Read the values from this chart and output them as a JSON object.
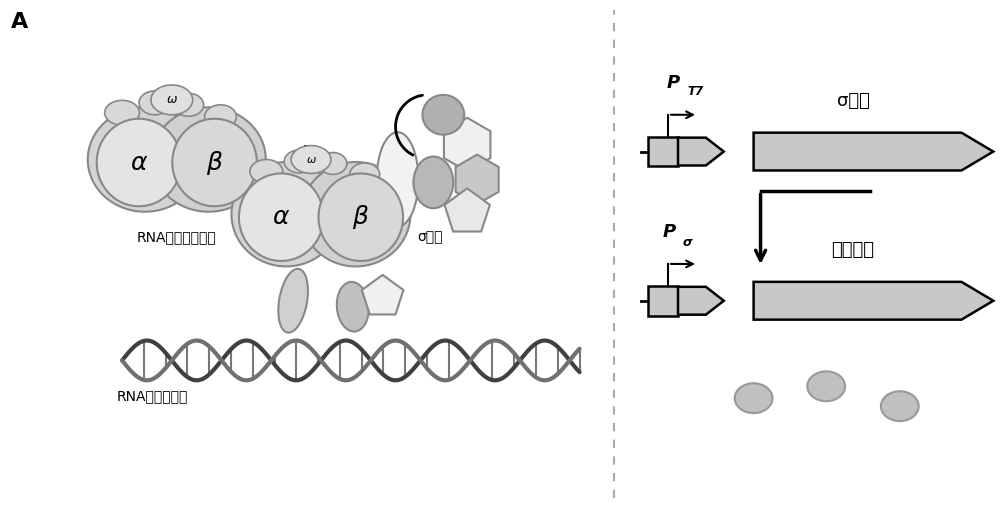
{
  "bg_color": "#ffffff",
  "title_A": "A",
  "text_rna_core": "RNA聚合酶核心酶",
  "text_sigma_factor": "σ因子",
  "text_rna_holo": "RNA聚合酶全酶",
  "text_pt7_P": "P",
  "text_pt7_sub": "T7",
  "text_sigma_gene_label": "σ因子",
  "text_psigma_P": "P",
  "text_psigma_sub": "σ",
  "text_fluorescent": "荧光蛋白",
  "gray_light": "#c8c8c8",
  "gray_mid": "#b0b0b0",
  "gray_dark": "#888888",
  "gray_very_light": "#e8e8e8",
  "white_gray": "#f0f0f0",
  "black": "#000000",
  "white": "#ffffff"
}
